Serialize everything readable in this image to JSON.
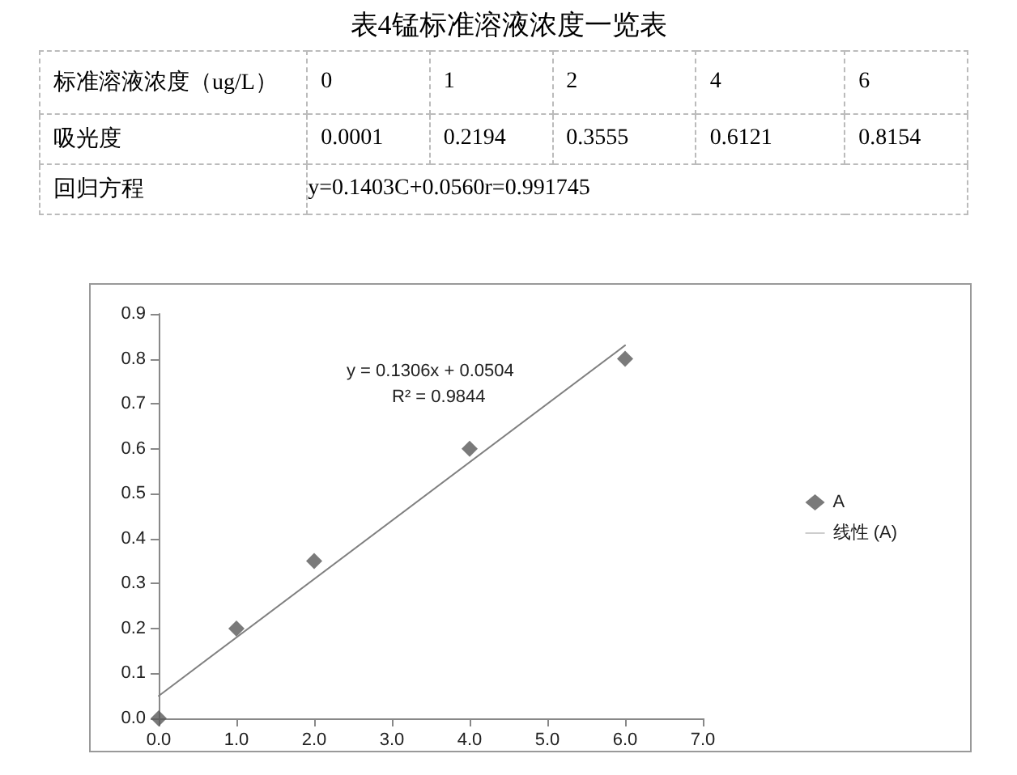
{
  "chart_data": [
    {
      "type": "other",
      "title": "表4锰标准溶液浓度一览表",
      "annotations": [
        "标准溶液浓度（ug/L）",
        "0",
        "1",
        "2",
        "4",
        "6",
        "吸光度",
        "0.0001",
        "0.2194",
        "0.3555",
        "0.6121",
        "0.8154",
        "回归方程",
        "y=0.1403C+0.0560r=0.991745"
      ]
    },
    {
      "type": "scatter",
      "x": [
        0,
        1,
        2,
        4,
        6
      ],
      "xlim": [
        0,
        7
      ],
      "ylim": [
        0,
        0.9
      ],
      "xticks": [
        {
          "value": 0,
          "label": "0.0"
        },
        {
          "value": 1,
          "label": "1.0"
        },
        {
          "value": 2,
          "label": "2.0"
        },
        {
          "value": 3,
          "label": "3.0"
        },
        {
          "value": 4,
          "label": "4.0"
        },
        {
          "value": 5,
          "label": "5.0"
        },
        {
          "value": 6,
          "label": "6.0"
        },
        {
          "value": 7,
          "label": "7.0"
        }
      ],
      "yticks": [
        {
          "value": 0,
          "label": "0.0"
        },
        0.1,
        0.2,
        0.3,
        0.4,
        0.5,
        0.6,
        0.7,
        0.8,
        0.9
      ],
      "grid": false,
      "legend": "right",
      "series": [
        {
          "name": "A",
          "type": "scatter",
          "marker": "diamond",
          "color": "#595959",
          "values": [
            0,
            0.2,
            0.35,
            0.6,
            0.8
          ]
        },
        {
          "name": "线性 (A)",
          "type": "line",
          "marker": "none",
          "line_style": "solid",
          "color": "#808080",
          "x": [
            0,
            6
          ],
          "values": [
            0.05,
            0.83
          ]
        }
      ],
      "annotations": [
        "y = 0.1306x + 0.0504",
        "R² = 0.9844"
      ]
    }
  ]
}
